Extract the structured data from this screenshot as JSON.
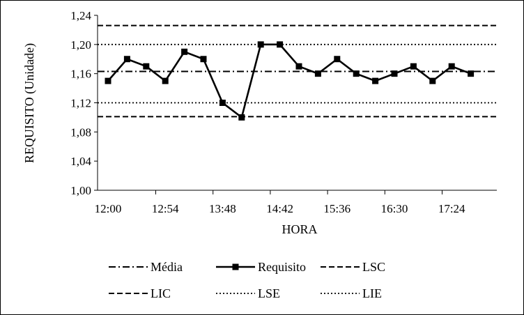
{
  "chart_data": {
    "type": "line",
    "xlabel": "HORA",
    "ylabel": "REQUISITO  (Unidade)",
    "ylim": [
      1.0,
      1.24
    ],
    "yticks": [
      "1,00",
      "1,04",
      "1,08",
      "1,12",
      "1,16",
      "1,20",
      "1,24"
    ],
    "xticks": [
      "12:00",
      "12:54",
      "13:48",
      "14:42",
      "15:36",
      "16:30",
      "17:24"
    ],
    "x": [
      "12:00",
      "12:18",
      "12:36",
      "12:54",
      "13:12",
      "13:30",
      "13:48",
      "14:06",
      "14:24",
      "14:42",
      "15:00",
      "15:18",
      "15:36",
      "15:54",
      "16:12",
      "16:30",
      "16:48",
      "17:06",
      "17:24",
      "17:42"
    ],
    "series": [
      {
        "name": "Requisito",
        "style": "solid-marker",
        "values": [
          1.15,
          1.18,
          1.17,
          1.15,
          1.19,
          1.18,
          1.12,
          1.1,
          1.2,
          1.2,
          1.17,
          1.16,
          1.18,
          1.16,
          1.15,
          1.16,
          1.17,
          1.15,
          1.17,
          1.16
        ]
      },
      {
        "name": "Média",
        "style": "dash-dot",
        "value": 1.163
      },
      {
        "name": "LSC",
        "style": "dashed",
        "value": 1.226
      },
      {
        "name": "LIC",
        "style": "dashed",
        "value": 1.101
      },
      {
        "name": "LSE",
        "style": "dotted",
        "value": 1.2
      },
      {
        "name": "LIE",
        "style": "dotted",
        "value": 1.12
      }
    ],
    "legend_position": "bottom",
    "grid": false
  }
}
